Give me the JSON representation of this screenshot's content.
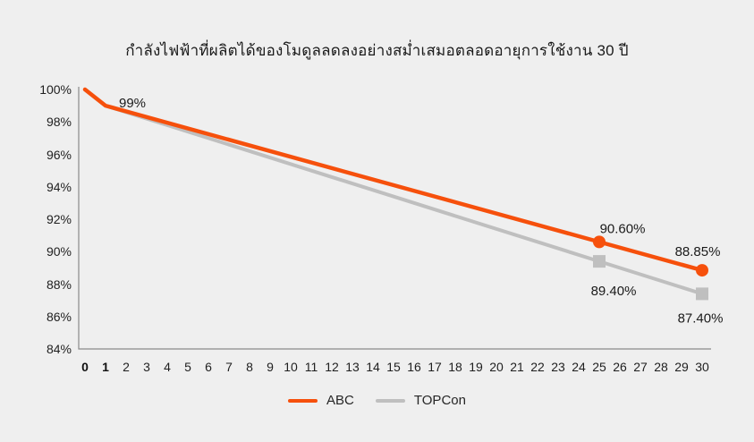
{
  "title": "กำลังไฟฟ้าที่ผลิตได้ของโมดูลลดลงอย่างสม่ำเสมอตลอดอายุการใช้งาน 30 ปี",
  "colors": {
    "abc": "#F6500C",
    "topcon": "#BFBFBF",
    "background": "#EFEFEF",
    "axis": "#8A8A8A",
    "text": "#1A1A1A"
  },
  "chart_data": {
    "type": "line",
    "title": "กำลังไฟฟ้าที่ผลิตได้ของโมดูลลดลงอย่างสม่ำเสมอตลอดอายุการใช้งาน 30 ปี",
    "xlabel": "",
    "ylabel": "",
    "xlim": [
      0,
      30
    ],
    "ylim": [
      84,
      100
    ],
    "grid": false,
    "legend_position": "bottom-center",
    "x_ticks": [
      0,
      1,
      2,
      3,
      4,
      5,
      6,
      7,
      8,
      9,
      10,
      11,
      12,
      13,
      14,
      15,
      16,
      17,
      18,
      19,
      20,
      21,
      22,
      23,
      24,
      25,
      26,
      27,
      28,
      29,
      30
    ],
    "bold_x_ticks": [
      0,
      1
    ],
    "y_ticks": [
      {
        "value": 100,
        "label": "100%"
      },
      {
        "value": 98,
        "label": "98%"
      },
      {
        "value": 96,
        "label": "96%"
      },
      {
        "value": 94,
        "label": "94%"
      },
      {
        "value": 92,
        "label": "92%"
      },
      {
        "value": 90,
        "label": "90%"
      },
      {
        "value": 88,
        "label": "88%"
      },
      {
        "value": 86,
        "label": "86%"
      },
      {
        "value": 84,
        "label": "84%"
      }
    ],
    "series": [
      {
        "name": "ABC",
        "color": "#F6500C",
        "marker": "circle",
        "points": [
          [
            0,
            100
          ],
          [
            1,
            99
          ],
          [
            25,
            90.6
          ],
          [
            30,
            88.85
          ]
        ],
        "marker_points": [
          [
            25,
            90.6
          ],
          [
            30,
            88.85
          ]
        ],
        "labels": [
          {
            "x": 1,
            "y": 99,
            "text": "99%"
          },
          {
            "x": 25,
            "y": 90.6,
            "text": "90.60%"
          },
          {
            "x": 30,
            "y": 88.85,
            "text": "88.85%"
          }
        ]
      },
      {
        "name": "TOPCon",
        "color": "#BFBFBF",
        "marker": "square",
        "points": [
          [
            0,
            100
          ],
          [
            1,
            99
          ],
          [
            25,
            89.4
          ],
          [
            30,
            87.4
          ]
        ],
        "marker_points": [
          [
            25,
            89.4
          ],
          [
            30,
            87.4
          ]
        ],
        "labels": [
          {
            "x": 25,
            "y": 89.4,
            "text": "89.40%"
          },
          {
            "x": 30,
            "y": 87.4,
            "text": "87.40%"
          }
        ]
      }
    ],
    "legend": [
      {
        "label": "ABC"
      },
      {
        "label": "TOPCon"
      }
    ]
  }
}
